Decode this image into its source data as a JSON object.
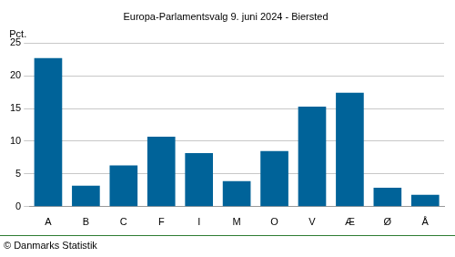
{
  "chart_data": {
    "type": "bar",
    "title": "Europa-Parlamentsvalg 9. juni 2024 - Biersted",
    "ylabel": "Pct.",
    "caption": "© Danmarks Statistik",
    "categories": [
      "A",
      "B",
      "C",
      "F",
      "I",
      "M",
      "O",
      "V",
      "Æ",
      "Ø",
      "Å"
    ],
    "values": [
      22.7,
      3.2,
      6.3,
      10.7,
      8.2,
      3.9,
      8.5,
      15.3,
      17.4,
      2.9,
      1.8
    ],
    "color": "#006399",
    "ylim": [
      0,
      25
    ],
    "yticks": [
      0,
      5,
      10,
      15,
      20,
      25
    ],
    "grid": true
  }
}
